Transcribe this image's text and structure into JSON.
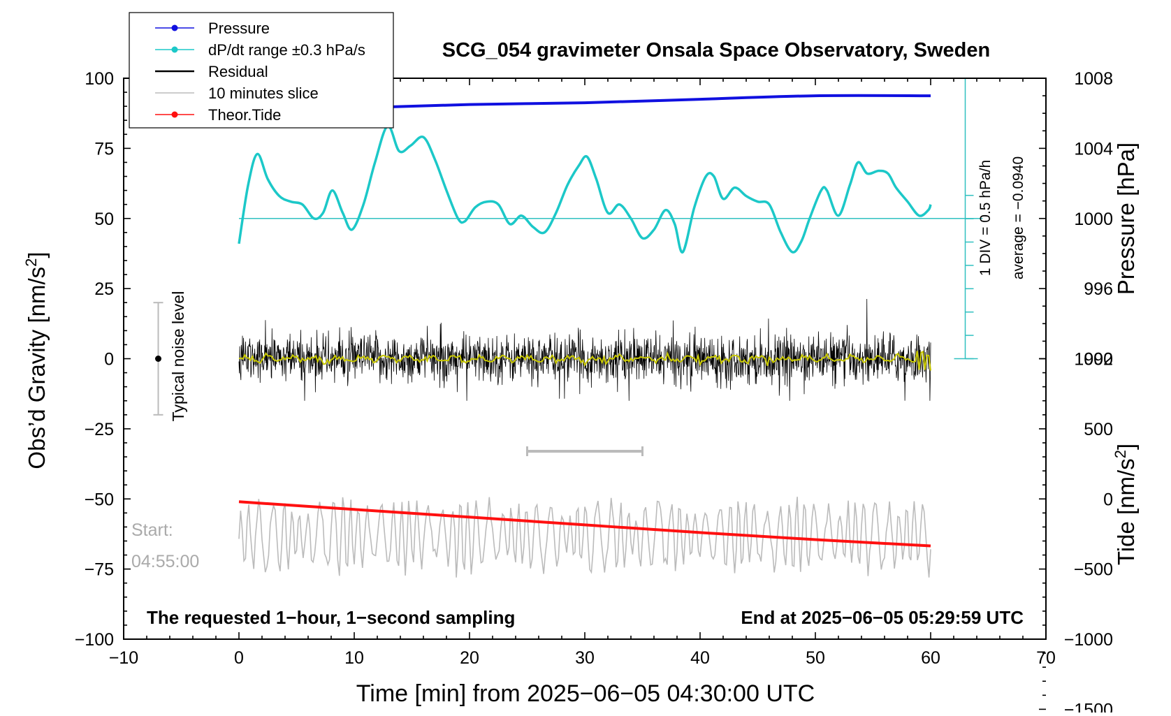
{
  "chart_data": {
    "type": "line",
    "title": "SCG_054 gravimeter Onsala Space Observatory, Sweden",
    "xlabel": "Time [min] from 2025−06−05 04:30:00 UTC",
    "ylabel_left_prefix": "Obs’d Gravity [nm/s",
    "ylabel_left_sup": "2",
    "ylabel_left_suffix": "]",
    "ylabel_right_top": "Pressure [hPa]",
    "ylabel_right_bottom_prefix": "Tide [nm/s",
    "ylabel_right_bottom_sup": "2",
    "ylabel_right_bottom_suffix": "]",
    "xlim": [
      -10,
      70
    ],
    "ylim": [
      -100,
      100
    ],
    "xticks": [
      "−10",
      "0",
      "10",
      "20",
      "30",
      "40",
      "50",
      "60",
      "70"
    ],
    "xtick_values": [
      -10,
      0,
      10,
      20,
      30,
      40,
      50,
      60,
      70
    ],
    "yticks_left": [
      "100",
      "75",
      "50",
      "25",
      "0",
      "−25",
      "−50",
      "−75",
      "−100"
    ],
    "ytick_left_values": [
      100,
      75,
      50,
      25,
      0,
      -25,
      -50,
      -75,
      -100
    ],
    "pressure_axis": {
      "ticks": [
        "1008",
        "1004",
        "1000",
        "996",
        "992"
      ],
      "values": [
        1008,
        1004,
        1000,
        996,
        992
      ]
    },
    "tide_axis": {
      "ticks": [
        "1000",
        "500",
        "0",
        "−500",
        "−1000",
        "−1500"
      ],
      "values": [
        1000,
        500,
        0,
        -500,
        -1000,
        -1500
      ]
    },
    "legend": {
      "position": "top-left",
      "entries": [
        {
          "name": "Pressure",
          "color": "#1010e0"
        },
        {
          "name": "dP/dt range ±0.3 hPa/s",
          "color": "#1cc8c8"
        },
        {
          "name": "Residual",
          "color": "#000000"
        },
        {
          "name": "10 minutes slice",
          "color": "#bbbbbb"
        },
        {
          "name": "Theor.Tide",
          "color": "#ff1010"
        }
      ]
    },
    "series": [
      {
        "name": "Pressure",
        "color": "#1010e0",
        "x": [
          0,
          10,
          20,
          30,
          40,
          50,
          60
        ],
        "y": [
          1006.1,
          1006.3,
          1006.5,
          1006.6,
          1006.8,
          1007.0,
          1007.0
        ]
      },
      {
        "name": "dP/dt range ±0.3 hPa/s",
        "color": "#1cc8c8",
        "x": [
          0,
          0.8,
          1.6,
          2.5,
          3.5,
          4.5,
          5.5,
          6.5,
          7.3,
          8.1,
          9,
          9.8,
          10.8,
          11.8,
          12.9,
          13.9,
          14.9,
          16,
          17,
          18,
          19,
          19.6,
          20.5,
          21.5,
          22.5,
          23.5,
          24.5,
          25.5,
          26.5,
          27.5,
          28.5,
          29.5,
          30.2,
          31,
          32,
          33,
          34,
          35,
          36,
          37,
          37.8,
          38.5,
          39.5,
          40.5,
          41.2,
          42,
          43,
          44,
          45,
          46,
          47,
          48,
          48.8,
          49.5,
          50.5,
          51,
          52,
          53,
          53.7,
          54.5,
          55.5,
          56.3,
          57,
          58,
          59,
          59.8,
          60
        ],
        "y": [
          41,
          62,
          73,
          64,
          58,
          56,
          55,
          50,
          52,
          60,
          52,
          46,
          55,
          70,
          83,
          74,
          76,
          79,
          71,
          60,
          50,
          49,
          54,
          56,
          55,
          48,
          51,
          47,
          45,
          52,
          62,
          69,
          72,
          64,
          52,
          55,
          50,
          43,
          46,
          53,
          48,
          38,
          54,
          65,
          65,
          57,
          61,
          58,
          56,
          55,
          45,
          38,
          42,
          50,
          60,
          60,
          51,
          62,
          70,
          66,
          67,
          66,
          61,
          56,
          51,
          53,
          55
        ]
      },
      {
        "name": "Residual",
        "color": "#000000",
        "x": [
          0,
          60
        ],
        "y": [
          0,
          0
        ],
        "band": [
          -13,
          15
        ]
      },
      {
        "name": "10 minutes slice",
        "color": "#bbbbbb",
        "x": [
          0,
          60
        ],
        "y": [
          -63,
          -63
        ],
        "band": [
          -78,
          -45
        ]
      },
      {
        "name": "Theor.Tide",
        "color": "#ff1010",
        "x": [
          0,
          10,
          20,
          30,
          40,
          50,
          60
        ],
        "tide_nm_s2": [
          -20,
          -75,
          -130,
          -185,
          -240,
          -290,
          -335
        ]
      }
    ],
    "slice_bar": {
      "x_start": 25,
      "x_end": 35,
      "y": -33
    },
    "noise_bar": {
      "x": -7,
      "y_low": -20,
      "y_high": 20,
      "label": "Typical noise level"
    },
    "dpdt_axis": {
      "label_line1": "1 DIV = 0.5 hPa/h",
      "label_line2": "average = −0.0940"
    },
    "annotations": {
      "start_label": "Start:",
      "start_time": "04:55:00",
      "bottom_left": "The requested 1−hour, 1−second sampling",
      "bottom_right": "End at 2025−06−05 05:29:59 UTC"
    },
    "colors": {
      "dpdt_zero_line": "#30c0c0",
      "smoothed_residual": "#c8c800",
      "slice_bar": "#bbbbbb",
      "start_text": "#aaaaaa"
    }
  }
}
